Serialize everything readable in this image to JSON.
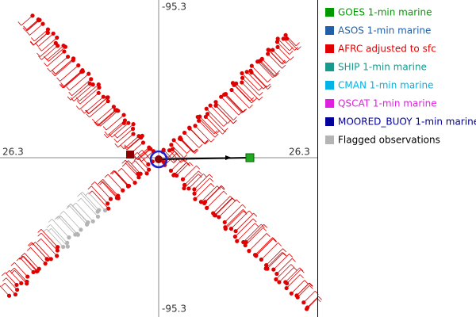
{
  "plot": {
    "top_label": "-95.3",
    "bottom_label": "-95.3",
    "left_label": "26.3",
    "right_label": "26.3"
  },
  "legend": {
    "items": [
      {
        "label": "GOES 1-min marine",
        "color": "#009a00"
      },
      {
        "label": "ASOS 1-min marine",
        "color": "#2060a8"
      },
      {
        "label": "AFRC adjusted to sfc",
        "color": "#e00000"
      },
      {
        "label": "SHIP 1-min marine",
        "color": "#159a8c"
      },
      {
        "label": "CMAN 1-min marine",
        "color": "#00b4e6"
      },
      {
        "label": "QSCAT 1-min marine",
        "color": "#e020e0"
      },
      {
        "label": "MOORED_BUOY 1-min marine",
        "color": "#000099"
      },
      {
        "label": "Flagged observations",
        "color": "#b4b4b4"
      }
    ]
  }
}
